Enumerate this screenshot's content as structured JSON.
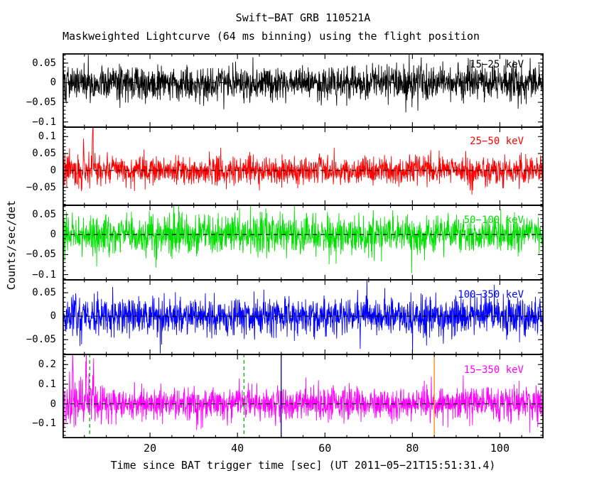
{
  "chart_data": {
    "type": "line",
    "title": "Swift−BAT GRB 110521A",
    "subtitle": "Maskweighted Lightcurve (64 ms binning) using the flight position",
    "xlabel": "Time since BAT trigger time [sec] (UT 2011−05−21T15:51:31.4)",
    "ylabel": "Counts/sec/det",
    "x_range": [
      0,
      110
    ],
    "x_ticks": [
      20,
      40,
      60,
      80,
      100
    ],
    "x_minor_step": 5,
    "bin_seconds": 0.064,
    "n_points": 1719,
    "grid": false,
    "background": "#ffffff",
    "frame_color": "#000000",
    "zero_line": {
      "style": "dashed",
      "color": "#000000",
      "y": 0
    },
    "panels": [
      {
        "label": "15−25 keV",
        "color": "#000000",
        "ylim": [
          -0.115,
          0.075
        ],
        "yticks": [
          0.05,
          0,
          -0.05,
          -0.1
        ],
        "noise_sigma": 0.022,
        "spikes": [],
        "vlines": [],
        "seed": 101
      },
      {
        "label": "25−50 keV",
        "color": "#ff0000",
        "ylim": [
          -0.105,
          0.13
        ],
        "yticks": [
          0.1,
          0.05,
          0,
          -0.05
        ],
        "noise_sigma": 0.02,
        "early_boost": {
          "until": 9,
          "factor": 1.35
        },
        "spikes": [
          {
            "x": 6.9,
            "y": 0.125
          },
          {
            "x": 4.8,
            "y": 0.08
          }
        ],
        "vlines": [],
        "seed": 202
      },
      {
        "label": "50−100 keV",
        "color": "#00e000",
        "ylim": [
          -0.115,
          0.075
        ],
        "yticks": [
          0.05,
          0,
          -0.05,
          -0.1
        ],
        "noise_sigma": 0.024,
        "spikes": [],
        "vlines": [],
        "seed": 303
      },
      {
        "label": "100−350 keV",
        "color": "#0000ff",
        "ylim": [
          -0.083,
          0.079
        ],
        "yticks": [
          0.05,
          0,
          -0.05
        ],
        "noise_sigma": 0.021,
        "spikes": [],
        "vlines": [],
        "seed": 404
      },
      {
        "label": "15−350 keV",
        "color": "#ff00ff",
        "ylim": [
          -0.175,
          0.255
        ],
        "yticks": [
          0.2,
          0.1,
          0,
          -0.1
        ],
        "noise_sigma": 0.043,
        "early_boost": {
          "until": 9,
          "factor": 1.55
        },
        "spikes": [
          {
            "x": 5.4,
            "y": 0.24
          },
          {
            "x": 7.1,
            "y": 0.19
          },
          {
            "x": 2.3,
            "y": 0.16
          }
        ],
        "vlines": [
          {
            "x": 6.2,
            "color": "#00b000",
            "style": "dashed"
          },
          {
            "x": 41.5,
            "color": "#00b000",
            "style": "dashed"
          },
          {
            "x": 50.0,
            "color": "#000080",
            "style": "solid"
          },
          {
            "x": 85.0,
            "color": "#ff8800",
            "style": "solid"
          }
        ],
        "seed": 505
      }
    ]
  }
}
